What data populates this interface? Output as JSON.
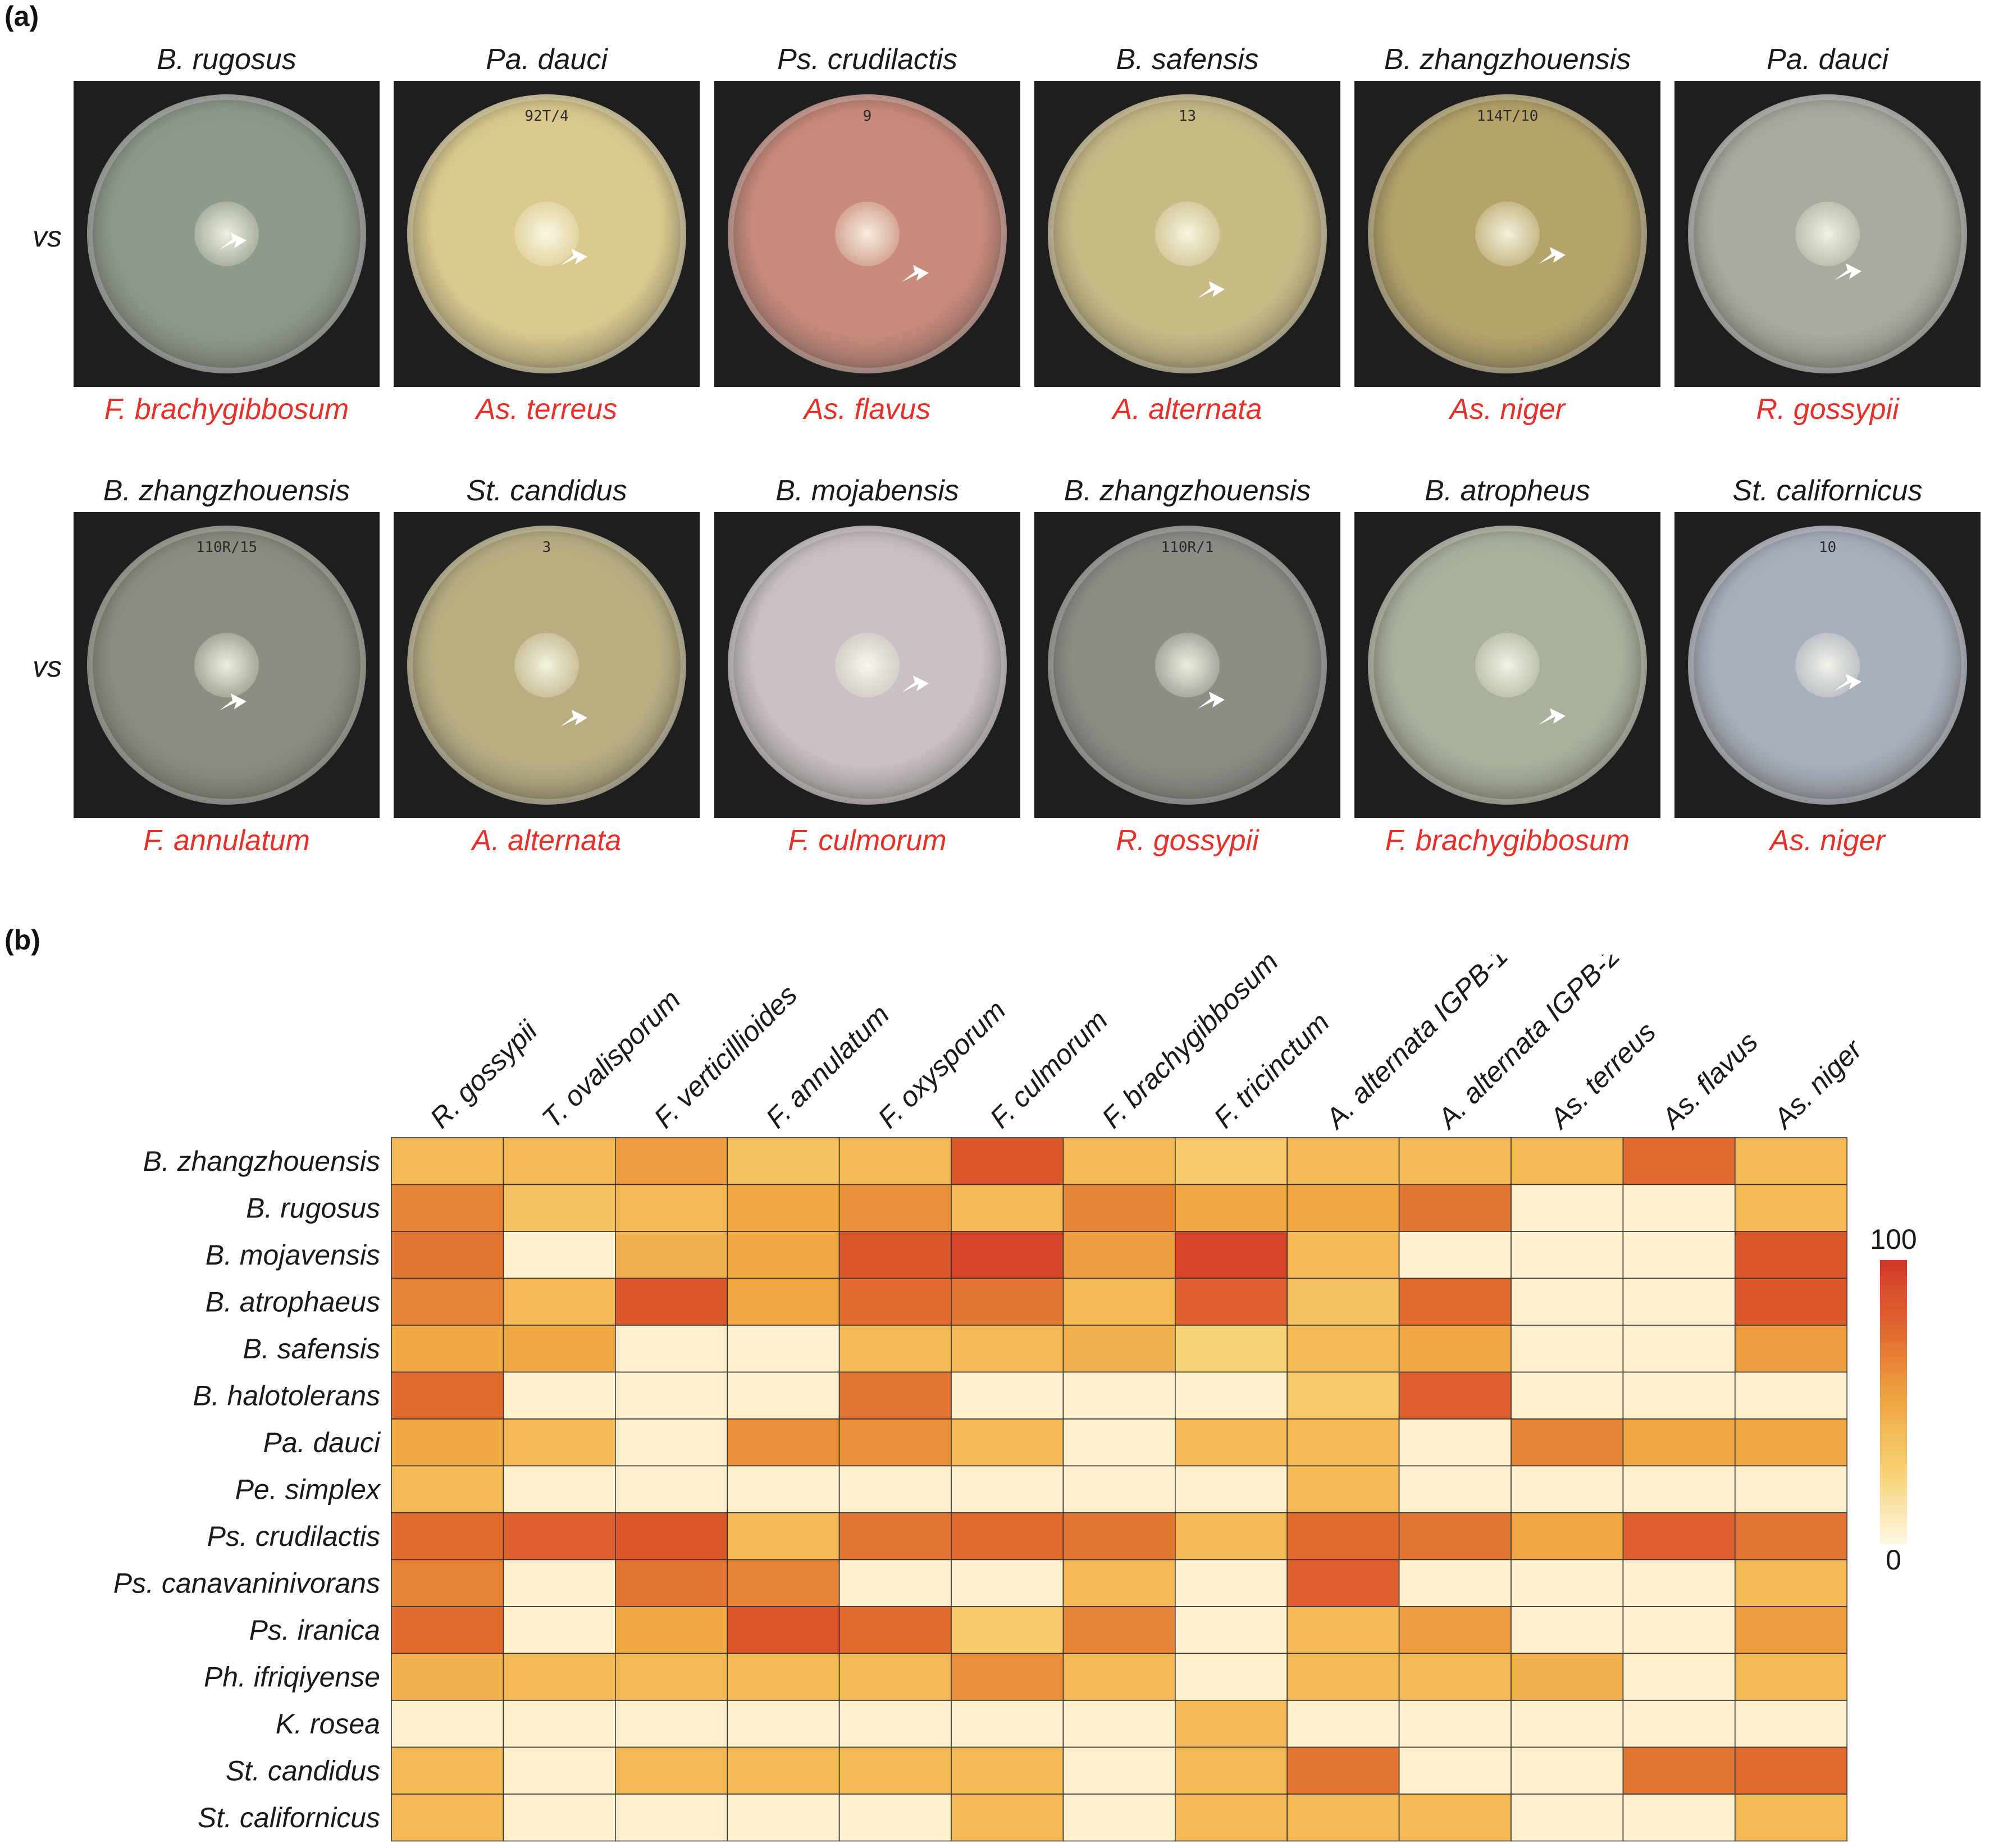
{
  "panel_a": {
    "label": "(a)",
    "vs_label": "vs",
    "rows": [
      [
        {
          "bacterium": "B. rugosus",
          "fungus": "F. brachygibbosum",
          "bg": "#8e9a8c",
          "plate_note": ""
        },
        {
          "bacterium": "Pa. dauci",
          "fungus": "As. terreus",
          "bg": "#d9c98e",
          "plate_note": "92T/4"
        },
        {
          "bacterium": "Ps. crudilactis",
          "fungus": "As. flavus",
          "bg": "#c98a7c",
          "plate_note": "9"
        },
        {
          "bacterium": "B. safensis",
          "fungus": "A. alternata",
          "bg": "#c9bb86",
          "plate_note": "13"
        },
        {
          "bacterium": "B. zhangzhouensis",
          "fungus": "As. niger",
          "bg": "#b5a46a",
          "plate_note": "114T/10"
        },
        {
          "bacterium": "Pa. dauci",
          "fungus": "R. gossypii",
          "bg": "#a9aaa0",
          "plate_note": ""
        }
      ],
      [
        {
          "bacterium": "B. zhangzhouensis",
          "fungus": "F. annulatum",
          "bg": "#8b8f82",
          "plate_note": "110R/15"
        },
        {
          "bacterium": "St. candidus",
          "fungus": "A. alternata",
          "bg": "#b9ae82",
          "plate_note": "3"
        },
        {
          "bacterium": "B. mojabensis",
          "fungus": "F. culmorum",
          "bg": "#c9c0c2",
          "plate_note": ""
        },
        {
          "bacterium": "B. zhangzhouensis",
          "fungus": "R. gossypii",
          "bg": "#8d8f87",
          "plate_note": "110R/1"
        },
        {
          "bacterium": "B. atropheus",
          "fungus": "F. brachygibbosum",
          "bg": "#a9b09c",
          "plate_note": ""
        },
        {
          "bacterium": "St. californicus",
          "fungus": "As. niger",
          "bg": "#a8b0bd",
          "plate_note": "10"
        }
      ]
    ]
  },
  "panel_b": {
    "label": "(b)",
    "colorbar": {
      "max_label": "100",
      "min_label": "0",
      "colors": [
        "#fdf7e3",
        "#f7d274",
        "#f0a843",
        "#e16a2f",
        "#cf3a28"
      ]
    },
    "chart_data": {
      "type": "heatmap",
      "title": "",
      "x_categories": [
        "R. gossypii",
        "T. ovalisporum",
        "F. verticillioides",
        "F. annulatum",
        "F. oxysporum",
        "F. culmorum",
        "F. brachygibbosum",
        "F. tricinctum",
        "A. alternata IGPB-1",
        "A. alternata IGPB-2",
        "As. terreus",
        "As. flavus",
        "As. niger"
      ],
      "y_categories": [
        "B. zhangzhouensis",
        "B. rugosus",
        "B. mojavensis",
        "B. atrophaeus",
        "B. safensis",
        "B. halotolerans",
        "Pa. dauci",
        "Pe. simplex",
        "Ps. crudilactis",
        "Ps. canavaninivorans",
        "Ps. iranica",
        "Ph. ifriqiyense",
        "K. rosea",
        "St. candidus",
        "St. californicus"
      ],
      "value_range": [
        0,
        100
      ],
      "values": [
        [
          40,
          40,
          55,
          35,
          40,
          85,
          40,
          30,
          40,
          40,
          40,
          75,
          40
        ],
        [
          65,
          35,
          40,
          50,
          60,
          40,
          65,
          50,
          50,
          70,
          5,
          5,
          40
        ],
        [
          70,
          5,
          45,
          50,
          85,
          95,
          55,
          95,
          40,
          5,
          5,
          5,
          85
        ],
        [
          65,
          40,
          85,
          50,
          75,
          70,
          40,
          80,
          35,
          75,
          5,
          5,
          85
        ],
        [
          50,
          50,
          5,
          5,
          40,
          40,
          45,
          25,
          40,
          50,
          5,
          5,
          55
        ],
        [
          75,
          5,
          5,
          5,
          70,
          5,
          5,
          5,
          30,
          80,
          5,
          5,
          5
        ],
        [
          50,
          40,
          5,
          60,
          60,
          40,
          5,
          40,
          40,
          5,
          65,
          50,
          50
        ],
        [
          40,
          5,
          5,
          5,
          5,
          5,
          5,
          5,
          40,
          5,
          5,
          5,
          5
        ],
        [
          75,
          80,
          85,
          40,
          70,
          75,
          70,
          40,
          75,
          70,
          50,
          80,
          70
        ],
        [
          65,
          5,
          70,
          65,
          5,
          5,
          40,
          5,
          80,
          5,
          5,
          5,
          40
        ],
        [
          75,
          5,
          50,
          85,
          75,
          30,
          65,
          5,
          40,
          55,
          5,
          5,
          55
        ],
        [
          45,
          40,
          40,
          40,
          40,
          60,
          40,
          5,
          40,
          40,
          45,
          5,
          40
        ],
        [
          5,
          5,
          5,
          5,
          5,
          5,
          5,
          40,
          5,
          5,
          5,
          5,
          5
        ],
        [
          40,
          5,
          40,
          40,
          40,
          40,
          5,
          40,
          70,
          5,
          5,
          70,
          75
        ],
        [
          40,
          5,
          5,
          5,
          5,
          40,
          5,
          40,
          40,
          40,
          5,
          5,
          40
        ]
      ]
    }
  }
}
